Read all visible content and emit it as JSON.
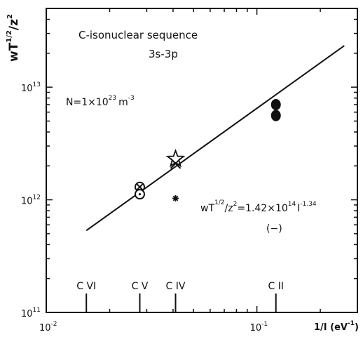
{
  "chart_data": {
    "type": "scatter",
    "xscale": "log",
    "yscale": "log",
    "xlim": [
      0.01,
      0.3
    ],
    "ylim": [
      100000000000.0,
      50000000000000.0
    ],
    "ylabel": "wT^{1/2}/z^2",
    "xlabel": "1/I (eV^{-1})",
    "x_ticks": [
      {
        "value": 0.01,
        "label_base": "10",
        "label_exp": "-2"
      },
      {
        "value": 0.1,
        "label_base": "10",
        "label_exp": "-1"
      }
    ],
    "y_ticks": [
      {
        "value": 100000000000.0,
        "label_base": "10",
        "label_exp": "11"
      },
      {
        "value": 1000000000000.0,
        "label_base": "10",
        "label_exp": "12"
      },
      {
        "value": 10000000000000.0,
        "label_base": "10",
        "label_exp": "13"
      }
    ],
    "annotations": {
      "sequence": "C-isonuclear sequence",
      "transition": "3s-3p",
      "density_prefix": "N=1×10",
      "density_exp": "23",
      "density_unit": "m",
      "density_unit_exp": "-3",
      "fit_lhs_base": "wT",
      "fit_lhs_frac": "1/2",
      "fit_lhs_div": "/z",
      "fit_lhs_div_exp": "2",
      "fit_rhs_prefix": "=1.42×10",
      "fit_rhs_exp": "14",
      "fit_rhs_var": "I",
      "fit_rhs_var_exp": "-1.34",
      "fit_line_label": "(−)"
    },
    "ion_markers": [
      {
        "label": "C VI",
        "x": 0.0155
      },
      {
        "label": "C V",
        "x": 0.0278
      },
      {
        "label": "C IV",
        "x": 0.0411
      },
      {
        "label": "C II",
        "x": 0.1231
      }
    ],
    "fit_line": {
      "coef": 142000000000000.0,
      "exponent": -1.34,
      "x_range": [
        0.0155,
        0.26
      ]
    },
    "series": [
      {
        "marker": "filled-circle",
        "points": [
          {
            "x": 0.1231,
            "y": 7000000000000.0
          },
          {
            "x": 0.1231,
            "y": 5600000000000.0
          }
        ]
      },
      {
        "marker": "circle-x",
        "points": [
          {
            "x": 0.0278,
            "y": 1300000000000.0
          }
        ]
      },
      {
        "marker": "circle-dot",
        "points": [
          {
            "x": 0.0278,
            "y": 1120000000000.0
          }
        ]
      },
      {
        "marker": "star",
        "points": [
          {
            "x": 0.0411,
            "y": 2300000000000.0
          }
        ]
      },
      {
        "marker": "cross-x",
        "points": [
          {
            "x": 0.0411,
            "y": 2100000000000.0
          }
        ]
      },
      {
        "marker": "asterisk",
        "points": [
          {
            "x": 0.0411,
            "y": 1030000000000.0
          }
        ]
      }
    ]
  }
}
